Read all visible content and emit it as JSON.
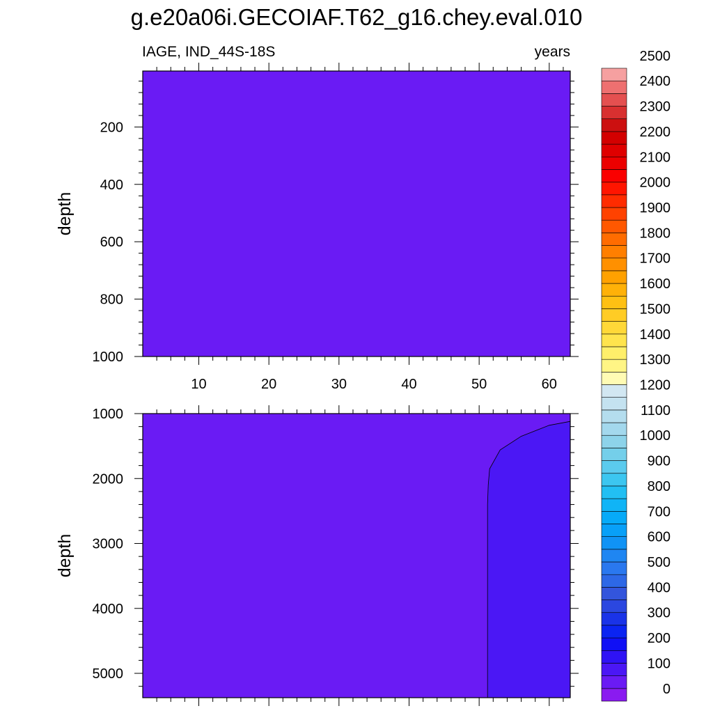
{
  "chart_data": {
    "type": "heatmap",
    "title": "g.e20a06i.GECOIAF.T62_g16.chey.eval.010",
    "variable_label": "IAGE, IND_44S-18S",
    "units_label": "years",
    "xlim": [
      2,
      63
    ],
    "x_ticks": [
      10,
      20,
      30,
      40,
      50,
      60
    ],
    "x_tick_labels": [
      "10",
      "20",
      "30",
      "40",
      "50",
      "60"
    ],
    "panels": [
      {
        "name": "upper",
        "ylabel": "depth",
        "ylim": [
          5,
          1000
        ],
        "y_reversed": true,
        "y_ticks": [
          200,
          400,
          600,
          800,
          1000
        ],
        "y_tick_labels": [
          "200",
          "400",
          "600",
          "800",
          "1000"
        ],
        "show_x_tick_labels": true,
        "fill_color": "#6a1bf4",
        "regions": []
      },
      {
        "name": "lower",
        "ylabel": "depth",
        "ylim": [
          1000,
          5375
        ],
        "y_reversed": true,
        "y_ticks": [
          1000,
          2000,
          3000,
          4000,
          5000
        ],
        "y_tick_labels": [
          "1000",
          "2000",
          "3000",
          "4000",
          "5000"
        ],
        "show_x_tick_labels": false,
        "fill_color": "#6a1bf4",
        "regions": [
          {
            "value_range": [
              0,
              50
            ],
            "color": "#4b17f5",
            "boundary": [
              [
                63,
                1120
              ],
              [
                60,
                1180
              ],
              [
                56,
                1350
              ],
              [
                53,
                1560
              ],
              [
                51.5,
                1850
              ],
              [
                51.3,
                2100
              ],
              [
                51.2,
                2400
              ],
              [
                51.2,
                5375
              ]
            ]
          }
        ]
      }
    ],
    "colorbar": {
      "levels": [
        0,
        50,
        100,
        150,
        200,
        250,
        300,
        350,
        400,
        450,
        500,
        550,
        600,
        650,
        700,
        750,
        800,
        850,
        900,
        950,
        1000,
        1050,
        1100,
        1150,
        1200,
        1250,
        1300,
        1350,
        1400,
        1450,
        1500,
        1550,
        1600,
        1650,
        1700,
        1750,
        1800,
        1850,
        1900,
        1950,
        2000,
        2050,
        2100,
        2150,
        2200,
        2250,
        2300,
        2350,
        2400,
        2450,
        2500
      ],
      "labels": [
        "0",
        "100",
        "200",
        "300",
        "400",
        "500",
        "600",
        "700",
        "800",
        "900",
        "1000",
        "1100",
        "1200",
        "1300",
        "1400",
        "1500",
        "1600",
        "1700",
        "1800",
        "1900",
        "2000",
        "2100",
        "2200",
        "2300",
        "2400",
        "2500"
      ],
      "colors": [
        "#8a1bf0",
        "#6a1bf4",
        "#4b17f5",
        "#2f13f5",
        "#1010f5",
        "#0b24f2",
        "#1a33e8",
        "#2b47e0",
        "#3355dc",
        "#2d68e6",
        "#2a78ef",
        "#1f86f2",
        "#1093f5",
        "#08a0f8",
        "#06aaf8",
        "#10b4f6",
        "#22bff3",
        "#3cc6f0",
        "#5bcbee",
        "#74cfea",
        "#8dd3ea",
        "#a3d8ed",
        "#b4ddee",
        "#c4e2f0",
        "#d2e7f2",
        "#fffbb4",
        "#fff585",
        "#ffef6a",
        "#ffe44d",
        "#ffd838",
        "#ffcc25",
        "#ffc013",
        "#ffb108",
        "#ffa100",
        "#ff9000",
        "#ff7f00",
        "#ff6c00",
        "#ff5800",
        "#ff4200",
        "#ff2c00",
        "#ff1500",
        "#fa0000",
        "#ec0000",
        "#df0000",
        "#d30000",
        "#cc1010",
        "#d83030",
        "#e45050",
        "#ee7070",
        "#f6a0a0"
      ]
    }
  }
}
